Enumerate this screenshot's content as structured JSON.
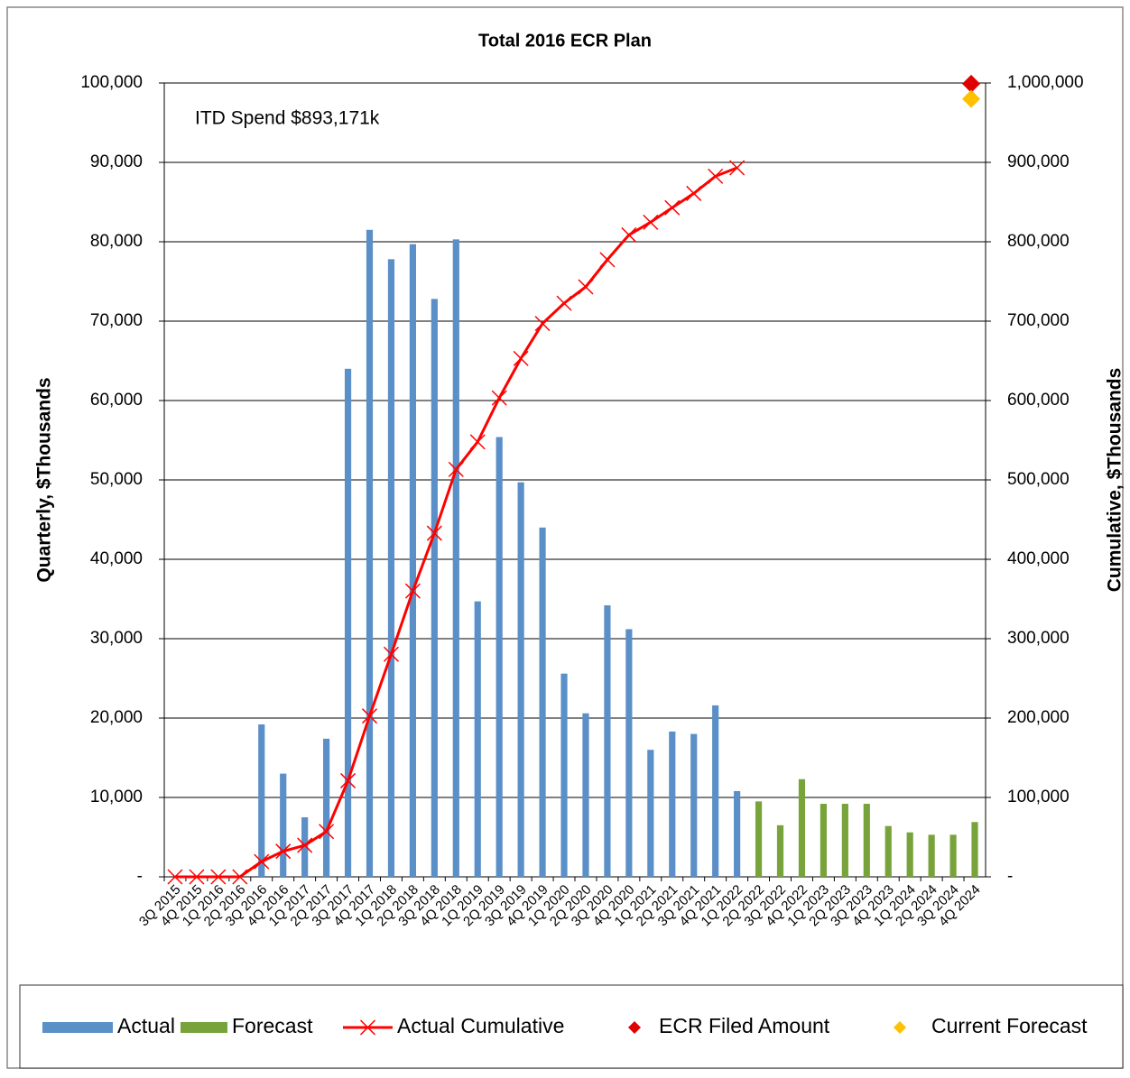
{
  "chart_data": {
    "type": "bar",
    "title": "Total 2016 ECR Plan",
    "annotation": "ITD Spend  $893,171k",
    "y_label": "Quarterly, $Thousands",
    "y2_label": "Cumulative, $Thousands",
    "categories": [
      "3Q 2015",
      "4Q 2015",
      "1Q 2016",
      "2Q 2016",
      "3Q 2016",
      "4Q 2016",
      "1Q 2017",
      "2Q 2017",
      "3Q 2017",
      "4Q 2017",
      "1Q 2018",
      "2Q 2018",
      "3Q 2018",
      "4Q 2018",
      "1Q 2019",
      "2Q 2019",
      "3Q 2019",
      "4Q 2019",
      "1Q 2020",
      "2Q 2020",
      "3Q 2020",
      "4Q 2020",
      "1Q 2021",
      "2Q 2021",
      "3Q 2021",
      "4Q 2021",
      "1Q 2022",
      "2Q 2022",
      "3Q 2022",
      "4Q 2022",
      "1Q 2023",
      "2Q 2023",
      "3Q 2023",
      "4Q 2023",
      "1Q 2024",
      "2Q 2024",
      "3Q 2024",
      "4Q 2024"
    ],
    "series": [
      {
        "name": "Actual",
        "type": "bar",
        "axis": "y",
        "color": "#5b8fc7",
        "values": [
          null,
          null,
          null,
          null,
          19200,
          13000,
          7500,
          17400,
          64000,
          81500,
          77800,
          79700,
          72800,
          80300,
          34700,
          55400,
          49700,
          44000,
          25600,
          20600,
          34200,
          31200,
          16000,
          18300,
          18000,
          21600,
          10800,
          null,
          null,
          null,
          null,
          null,
          null,
          null,
          null,
          null,
          null,
          null
        ]
      },
      {
        "name": "Forecast",
        "type": "bar",
        "axis": "y",
        "color": "#77a33a",
        "values": [
          null,
          null,
          null,
          null,
          null,
          null,
          null,
          null,
          null,
          null,
          null,
          null,
          null,
          null,
          null,
          null,
          null,
          null,
          null,
          null,
          null,
          null,
          null,
          null,
          null,
          null,
          null,
          9500,
          6500,
          12300,
          9200,
          9200,
          9200,
          6400,
          5600,
          5300,
          5300,
          6900
        ]
      },
      {
        "name": "Actual Cumulative",
        "type": "line",
        "axis": "y2",
        "color": "#ff0000",
        "values": [
          0,
          0,
          0,
          0,
          19200,
          32200,
          39700,
          57100,
          121100,
          202600,
          280400,
          360100,
          432900,
          513200,
          547900,
          603300,
          653000,
          697000,
          722600,
          743200,
          777400,
          808600,
          824600,
          842900,
          860900,
          882500,
          893171,
          null,
          null,
          null,
          null,
          null,
          null,
          null,
          null,
          null,
          null,
          null
        ]
      },
      {
        "name": "ECR Filed Amount",
        "type": "scatter",
        "axis": "y2",
        "color": "#e00000",
        "values": [
          null,
          null,
          null,
          null,
          null,
          null,
          null,
          null,
          null,
          null,
          null,
          null,
          null,
          null,
          null,
          null,
          null,
          null,
          null,
          null,
          null,
          null,
          null,
          null,
          null,
          null,
          null,
          null,
          null,
          null,
          null,
          null,
          null,
          null,
          null,
          null,
          null,
          999000
        ]
      },
      {
        "name": "Current Forecast",
        "type": "scatter",
        "axis": "y2",
        "color": "#ffc000",
        "values": [
          null,
          null,
          null,
          null,
          null,
          null,
          null,
          null,
          null,
          null,
          null,
          null,
          null,
          null,
          null,
          null,
          null,
          null,
          null,
          null,
          null,
          null,
          null,
          null,
          null,
          null,
          null,
          null,
          null,
          null,
          null,
          null,
          null,
          null,
          null,
          null,
          null,
          980000
        ]
      }
    ],
    "ylim": [
      0,
      100000
    ],
    "yticks": [
      {
        "value": 0,
        "label": "-"
      },
      {
        "value": 10000,
        "label": "10,000"
      },
      {
        "value": 20000,
        "label": "20,000"
      },
      {
        "value": 30000,
        "label": "30,000"
      },
      {
        "value": 40000,
        "label": "40,000"
      },
      {
        "value": 50000,
        "label": "50,000"
      },
      {
        "value": 60000,
        "label": "60,000"
      },
      {
        "value": 70000,
        "label": "70,000"
      },
      {
        "value": 80000,
        "label": "80,000"
      },
      {
        "value": 90000,
        "label": "90,000"
      },
      {
        "value": 100000,
        "label": "100,000"
      }
    ],
    "y2lim": [
      0,
      1000000
    ],
    "y2ticks": [
      {
        "value": 0,
        "label": "-"
      },
      {
        "value": 100000,
        "label": "100,000"
      },
      {
        "value": 200000,
        "label": "200,000"
      },
      {
        "value": 300000,
        "label": "300,000"
      },
      {
        "value": 400000,
        "label": "400,000"
      },
      {
        "value": 500000,
        "label": "500,000"
      },
      {
        "value": 600000,
        "label": "600,000"
      },
      {
        "value": 700000,
        "label": "700,000"
      },
      {
        "value": 800000,
        "label": "800,000"
      },
      {
        "value": 900000,
        "label": "900,000"
      },
      {
        "value": 1000000,
        "label": "1,000,000"
      }
    ],
    "grid": true,
    "legend": "bottom"
  }
}
